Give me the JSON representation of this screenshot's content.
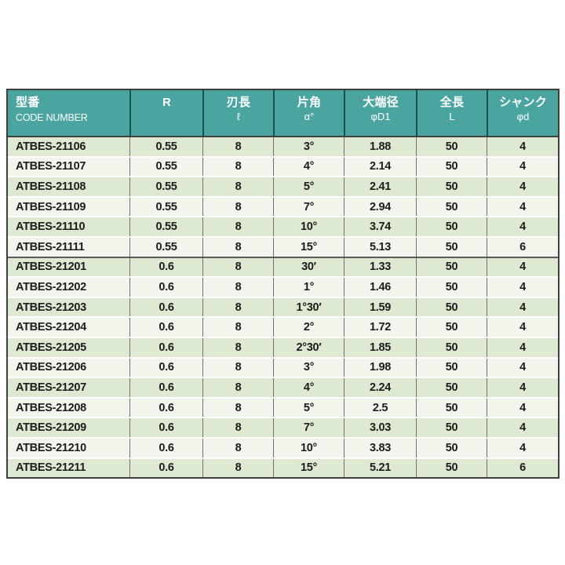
{
  "colors": {
    "header-bg": "#4aa5a0",
    "header-text": "#ffffff",
    "row-dark": "#dee9d2",
    "row-light": "#f2f5eb",
    "body-text": "#1c1c1c",
    "outer-border": "#3f3f3f",
    "header-divider": "#15524e",
    "body-divider": "#6f6f6f",
    "group-divider": "#5a5a5a",
    "row-gap": "#ffffff"
  },
  "table": {
    "columns": [
      {
        "key": "code-number",
        "title": "型番",
        "subtitle": "CODE NUMBER"
      },
      {
        "key": "r",
        "title": "R",
        "subtitle": ""
      },
      {
        "key": "flute-length",
        "title": "刃長",
        "subtitle": "ℓ"
      },
      {
        "key": "half-angle",
        "title": "片角",
        "subtitle": "α°"
      },
      {
        "key": "large-end-dia",
        "title": "大端径",
        "subtitle": "φD1"
      },
      {
        "key": "overall-length",
        "title": "全長",
        "subtitle": "L"
      },
      {
        "key": "shank-dia",
        "title": "シャンク",
        "subtitle": "φd"
      }
    ],
    "groups": [
      {
        "rows": [
          [
            "ATBES-21106",
            "0.55",
            "8",
            "3°",
            "1.88",
            "50",
            "4"
          ],
          [
            "ATBES-21107",
            "0.55",
            "8",
            "4°",
            "2.14",
            "50",
            "4"
          ],
          [
            "ATBES-21108",
            "0.55",
            "8",
            "5°",
            "2.41",
            "50",
            "4"
          ],
          [
            "ATBES-21109",
            "0.55",
            "8",
            "7°",
            "2.94",
            "50",
            "4"
          ],
          [
            "ATBES-21110",
            "0.55",
            "8",
            "10°",
            "3.74",
            "50",
            "4"
          ],
          [
            "ATBES-21111",
            "0.55",
            "8",
            "15°",
            "5.13",
            "50",
            "6"
          ]
        ]
      },
      {
        "rows": [
          [
            "ATBES-21201",
            "0.6",
            "8",
            "30′",
            "1.33",
            "50",
            "4"
          ],
          [
            "ATBES-21202",
            "0.6",
            "8",
            "1°",
            "1.46",
            "50",
            "4"
          ],
          [
            "ATBES-21203",
            "0.6",
            "8",
            "1°30′",
            "1.59",
            "50",
            "4"
          ],
          [
            "ATBES-21204",
            "0.6",
            "8",
            "2°",
            "1.72",
            "50",
            "4"
          ],
          [
            "ATBES-21205",
            "0.6",
            "8",
            "2°30′",
            "1.85",
            "50",
            "4"
          ],
          [
            "ATBES-21206",
            "0.6",
            "8",
            "3°",
            "1.98",
            "50",
            "4"
          ],
          [
            "ATBES-21207",
            "0.6",
            "8",
            "4°",
            "2.24",
            "50",
            "4"
          ],
          [
            "ATBES-21208",
            "0.6",
            "8",
            "5°",
            "2.5",
            "50",
            "4"
          ],
          [
            "ATBES-21209",
            "0.6",
            "8",
            "7°",
            "3.03",
            "50",
            "4"
          ],
          [
            "ATBES-21210",
            "0.6",
            "8",
            "10°",
            "3.83",
            "50",
            "4"
          ],
          [
            "ATBES-21211",
            "0.6",
            "8",
            "15°",
            "5.21",
            "50",
            "6"
          ]
        ]
      }
    ]
  }
}
